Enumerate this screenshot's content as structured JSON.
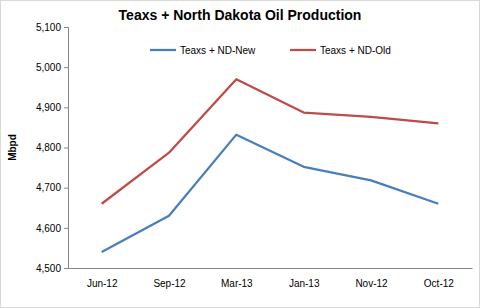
{
  "chart_data": {
    "type": "line",
    "title": "Teaxs + North Dakota Oil Production",
    "y_label": "Mbpd",
    "categories": [
      "Jun-12",
      "Sep-12",
      "Mar-13",
      "Jan-13",
      "Nov-12",
      "Oct-12"
    ],
    "series": [
      {
        "name": "Teaxs + ND-New",
        "color": "#4a7ebb",
        "values": [
          4540,
          4630,
          4832,
          4752,
          4718,
          4660
        ]
      },
      {
        "name": "Teaxs + ND-Old",
        "color": "#be4b48",
        "values": [
          4660,
          4787,
          4970,
          4887,
          4876,
          4860
        ]
      }
    ],
    "ylim": [
      4500,
      5100
    ],
    "yticks": [
      {
        "value": 4500,
        "label": "4,500"
      },
      {
        "value": 4600,
        "label": "4,600"
      },
      {
        "value": 4700,
        "label": "4,700"
      },
      {
        "value": 4800,
        "label": "4,800"
      },
      {
        "value": 4900,
        "label": "4,900"
      },
      {
        "value": 5000,
        "label": "5,000"
      },
      {
        "value": 5100,
        "label": "5,100"
      }
    ],
    "grid": false,
    "legend": "top"
  }
}
